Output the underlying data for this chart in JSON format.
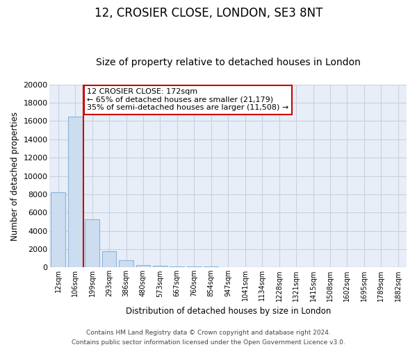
{
  "title": "12, CROSIER CLOSE, LONDON, SE3 8NT",
  "subtitle": "Size of property relative to detached houses in London",
  "xlabel": "Distribution of detached houses by size in London",
  "ylabel": "Number of detached properties",
  "bar_categories": [
    "12sqm",
    "106sqm",
    "199sqm",
    "293sqm",
    "386sqm",
    "480sqm",
    "573sqm",
    "667sqm",
    "760sqm",
    "854sqm",
    "947sqm",
    "1041sqm",
    "1134sqm",
    "1228sqm",
    "1321sqm",
    "1415sqm",
    "1508sqm",
    "1602sqm",
    "1695sqm",
    "1789sqm",
    "1882sqm"
  ],
  "bar_values": [
    8200,
    16500,
    5300,
    1750,
    800,
    290,
    200,
    100,
    90,
    70,
    60,
    50,
    40,
    30,
    25,
    20,
    15,
    12,
    10,
    8,
    5
  ],
  "bar_color": "#ccddf0",
  "bar_edge_color": "#8ab4d8",
  "property_line_color": "#cc0000",
  "property_line_index": 1.5,
  "ylim": [
    0,
    20000
  ],
  "yticks": [
    0,
    2000,
    4000,
    6000,
    8000,
    10000,
    12000,
    14000,
    16000,
    18000,
    20000
  ],
  "annotation_box_title": "12 CROSIER CLOSE: 172sqm",
  "annotation_line1": "← 65% of detached houses are smaller (21,179)",
  "annotation_line2": "35% of semi-detached houses are larger (11,508) →",
  "annotation_box_color": "#ffffff",
  "annotation_box_edge": "#cc0000",
  "footer_line1": "Contains HM Land Registry data © Crown copyright and database right 2024.",
  "footer_line2": "Contains public sector information licensed under the Open Government Licence v3.0.",
  "background_color": "#ffffff",
  "plot_bg_color": "#e8eef8",
  "grid_color": "#c8d0e0",
  "title_fontsize": 12,
  "subtitle_fontsize": 10,
  "bar_width": 0.85
}
